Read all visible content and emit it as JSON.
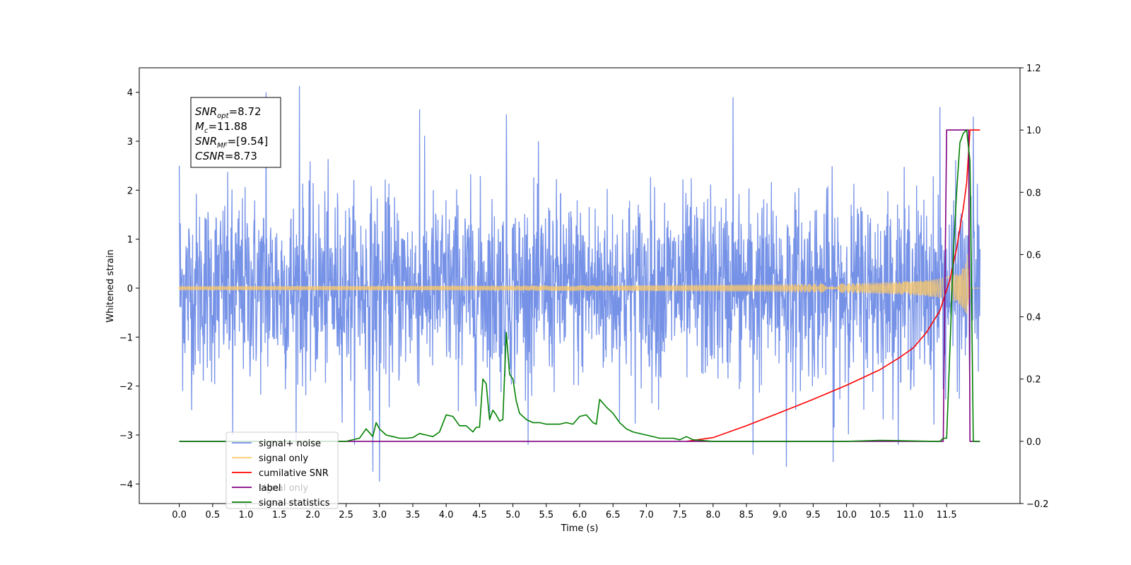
{
  "chart_data": {
    "type": "line",
    "title": "",
    "xlabel": "Time (s)",
    "ylabel": "Whitened strain",
    "xlim": [
      -0.6,
      12.6
    ],
    "ylim": [
      -4.4,
      4.5
    ],
    "y2lim": [
      -0.2,
      1.2
    ],
    "x_ticks": [
      0.0,
      0.5,
      1.0,
      1.5,
      2.0,
      2.5,
      3.0,
      3.5,
      4.0,
      4.5,
      5.0,
      5.5,
      6.0,
      6.5,
      7.0,
      7.5,
      8.0,
      8.5,
      9.0,
      9.5,
      10.0,
      10.5,
      11.0,
      11.5
    ],
    "x_tick_labels": [
      "0.0",
      "0.5",
      "1.0",
      "1.5",
      "2.0",
      "2.5",
      "3.0",
      "3.5",
      "4.0",
      "4.5",
      "5.0",
      "5.5",
      "6.0",
      "6.5",
      "7.0",
      "7.5",
      "8.0",
      "8.5",
      "9.0",
      "9.5",
      "10.0",
      "10.5",
      "11.0",
      "11.5"
    ],
    "y_ticks": [
      -4,
      -3,
      -2,
      -1,
      0,
      1,
      2,
      3,
      4
    ],
    "y_tick_labels": [
      "−4",
      "−3",
      "−2",
      "−1",
      "0",
      "1",
      "2",
      "3",
      "4"
    ],
    "y2_ticks": [
      -0.2,
      0.0,
      0.2,
      0.4,
      0.6,
      0.8,
      1.0,
      1.2
    ],
    "y2_tick_labels": [
      "−0.2",
      "0.0",
      "0.2",
      "0.4",
      "0.6",
      "0.8",
      "1.0",
      "1.2"
    ],
    "grid": false,
    "legend_position": "lower-left",
    "legend": [
      {
        "label": "signal+ noise",
        "color": "#6f8ce6"
      },
      {
        "label": "signal only",
        "color": "#ffc966"
      },
      {
        "label": "cumilative SNR",
        "color": "#ff0000"
      },
      {
        "label": "label",
        "color": "#800080"
      },
      {
        "label": "signal statistics",
        "color": "#008000"
      }
    ],
    "hidden_legend_text": "signal only",
    "annotation": {
      "lines": [
        {
          "base": "SNR",
          "sub": "opt",
          "value": "=8.72"
        },
        {
          "base": "M",
          "sub": "c",
          "value": "=11.88"
        },
        {
          "base": "SNR",
          "sub": "MF",
          "value": "=[9.54]"
        },
        {
          "base": "CSNR",
          "sub": "",
          "value": "=8.73"
        }
      ]
    },
    "series": [
      {
        "name": "signal+ noise",
        "axis": "left",
        "color": "#6f8ce6",
        "x_range": [
          0.0,
          12.0
        ],
        "envelope_typical": 1.5,
        "peaks": [
          {
            "x": 0.0,
            "y": 2.5
          },
          {
            "x": 0.05,
            "y": -2.1
          },
          {
            "x": 0.8,
            "y": -3.0
          },
          {
            "x": 1.3,
            "y": 4.0
          },
          {
            "x": 1.8,
            "y": 4.13
          },
          {
            "x": 2.9,
            "y": -3.75
          },
          {
            "x": 3.0,
            "y": -3.95
          },
          {
            "x": 3.6,
            "y": 3.65
          },
          {
            "x": 4.9,
            "y": 3.55
          },
          {
            "x": 8.3,
            "y": 3.9
          },
          {
            "x": 8.6,
            "y": -3.4
          },
          {
            "x": 9.1,
            "y": -3.65
          },
          {
            "x": 9.8,
            "y": -3.55
          },
          {
            "x": 11.4,
            "y": 3.7
          },
          {
            "x": 11.9,
            "y": 3.5
          }
        ]
      },
      {
        "name": "signal only",
        "axis": "left",
        "color": "#ffc966",
        "x_range": [
          0.0,
          12.0
        ],
        "peak_time": 11.85,
        "amplitude_end": 0.95
      },
      {
        "name": "cumilative SNR",
        "axis": "right",
        "color": "#ff0000",
        "x": [
          7.6,
          8.0,
          8.5,
          9.0,
          9.5,
          10.0,
          10.5,
          10.8,
          11.0,
          11.2,
          11.4,
          11.55,
          11.65,
          11.75,
          11.8,
          11.85,
          11.9,
          12.0
        ],
        "y": [
          0.0,
          0.012,
          0.05,
          0.092,
          0.135,
          0.18,
          0.23,
          0.27,
          0.3,
          0.35,
          0.42,
          0.52,
          0.62,
          0.75,
          0.83,
          1.0,
          1.0,
          1.0
        ]
      },
      {
        "name": "label",
        "axis": "right",
        "color": "#800080",
        "x": [
          0.0,
          11.45,
          11.5,
          11.83,
          11.85,
          12.0
        ],
        "y": [
          0.0,
          0.0,
          1.0,
          1.0,
          0.0,
          0.0
        ]
      },
      {
        "name": "signal statistics",
        "axis": "right",
        "color": "#008000",
        "x": [
          0.0,
          2.5,
          2.7,
          2.8,
          2.9,
          2.95,
          3.0,
          3.1,
          3.2,
          3.3,
          3.4,
          3.5,
          3.6,
          3.7,
          3.8,
          3.9,
          4.0,
          4.1,
          4.2,
          4.3,
          4.4,
          4.45,
          4.5,
          4.55,
          4.6,
          4.65,
          4.7,
          4.75,
          4.8,
          4.85,
          4.9,
          4.95,
          5.0,
          5.05,
          5.1,
          5.2,
          5.3,
          5.4,
          5.5,
          5.6,
          5.7,
          5.8,
          5.9,
          6.0,
          6.1,
          6.2,
          6.25,
          6.3,
          6.4,
          6.5,
          6.6,
          6.7,
          6.8,
          7.0,
          7.2,
          7.4,
          7.5,
          7.6,
          7.7,
          8.0,
          10.0,
          10.5,
          11.3,
          11.4,
          11.45,
          11.5,
          11.55,
          11.6,
          11.65,
          11.7,
          11.75,
          11.8,
          11.85,
          11.9,
          11.95,
          12.0
        ],
        "y": [
          0.0,
          0.0,
          0.01,
          0.04,
          0.015,
          0.06,
          0.04,
          0.02,
          0.015,
          0.01,
          0.01,
          0.012,
          0.025,
          0.02,
          0.015,
          0.03,
          0.085,
          0.08,
          0.05,
          0.05,
          0.03,
          0.045,
          0.045,
          0.2,
          0.185,
          0.07,
          0.1,
          0.085,
          0.065,
          0.07,
          0.35,
          0.215,
          0.2,
          0.13,
          0.09,
          0.07,
          0.06,
          0.06,
          0.055,
          0.055,
          0.055,
          0.06,
          0.055,
          0.08,
          0.085,
          0.06,
          0.055,
          0.135,
          0.11,
          0.09,
          0.06,
          0.04,
          0.03,
          0.02,
          0.01,
          0.01,
          0.005,
          0.015,
          0.005,
          0.0,
          0.0,
          0.003,
          0.0,
          0.0,
          0.01,
          0.01,
          0.3,
          0.6,
          0.8,
          0.96,
          0.99,
          1.0,
          0.9,
          0.0,
          0.0,
          0.0
        ]
      }
    ]
  }
}
